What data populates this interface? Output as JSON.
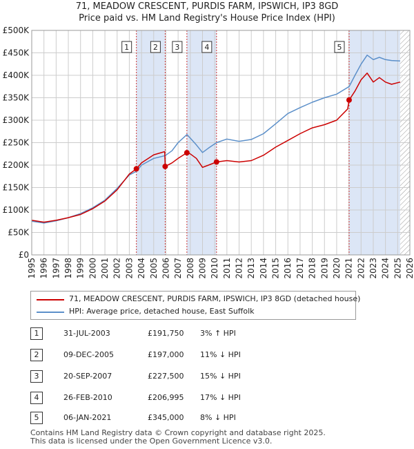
{
  "title_line1": "71, MEADOW CRESCENT, PURDIS FARM, IPSWICH, IP3 8GD",
  "title_line2": "Price paid vs. HM Land Registry's House Price Index (HPI)",
  "colors": {
    "price": "#cc0000",
    "hpi": "#5b8fc9",
    "shade": "#dce6f6",
    "grid": "#cccccc"
  },
  "legend": {
    "price": "71, MEADOW CRESCENT, PURDIS FARM, IPSWICH, IP3 8GD (detached house)",
    "hpi": "HPI: Average price, detached house, East Suffolk"
  },
  "transactions": [
    {
      "num": "1",
      "date": "31-JUL-2003",
      "price": "£191,750",
      "hpi": "3% ↑ HPI"
    },
    {
      "num": "2",
      "date": "09-DEC-2005",
      "price": "£197,000",
      "hpi": "11% ↓ HPI"
    },
    {
      "num": "3",
      "date": "20-SEP-2007",
      "price": "£227,500",
      "hpi": "15% ↓ HPI"
    },
    {
      "num": "4",
      "date": "26-FEB-2010",
      "price": "£206,995",
      "hpi": "17% ↓ HPI"
    },
    {
      "num": "5",
      "date": "06-JAN-2021",
      "price": "£345,000",
      "hpi": "8% ↓ HPI"
    }
  ],
  "footer_line1": "Contains HM Land Registry data © Crown copyright and database right 2025.",
  "footer_line2": "This data is licensed under the Open Government Licence v3.0.",
  "chart_data": {
    "type": "line",
    "xlim": [
      1995,
      2026
    ],
    "ylim": [
      0,
      500000
    ],
    "y_ticks": [
      0,
      50000,
      100000,
      150000,
      200000,
      250000,
      300000,
      350000,
      400000,
      450000,
      500000
    ],
    "y_tick_labels": [
      "£0",
      "£50K",
      "£100K",
      "£150K",
      "£200K",
      "£250K",
      "£300K",
      "£350K",
      "£400K",
      "£450K",
      "£500K"
    ],
    "x_ticks": [
      "1995",
      "1996",
      "1997",
      "1998",
      "1999",
      "2000",
      "2001",
      "2002",
      "2003",
      "2004",
      "2005",
      "2006",
      "2007",
      "2008",
      "2009",
      "2010",
      "2011",
      "2012",
      "2013",
      "2014",
      "2015",
      "2016",
      "2017",
      "2018",
      "2019",
      "2020",
      "2021",
      "2022",
      "2023",
      "2024",
      "2025",
      "2026"
    ],
    "grid": true,
    "shaded_periods": [
      [
        2003.58,
        2005.94
      ],
      [
        2007.72,
        2010.15
      ],
      [
        2021.02,
        2025.2
      ]
    ],
    "hatched_after": 2025.2,
    "sales": [
      {
        "label": "1",
        "x": 2003.58,
        "y": 191750
      },
      {
        "label": "2",
        "x": 2005.94,
        "y": 197000
      },
      {
        "label": "3",
        "x": 2007.72,
        "y": 227500
      },
      {
        "label": "4",
        "x": 2010.15,
        "y": 206995
      },
      {
        "label": "5",
        "x": 2021.02,
        "y": 345000
      }
    ],
    "series": [
      {
        "name": "71, MEADOW CRESCENT, PURDIS FARM, IPSWICH, IP3 8GD (detached house)",
        "color": "#cc0000",
        "x": [
          1995,
          1996,
          1997,
          1998,
          1999,
          2000,
          2001,
          2002,
          2003,
          2003.58,
          2004,
          2005,
          2005.9,
          2005.94,
          2006.5,
          2007,
          2007.72,
          2008,
          2008.5,
          2009,
          2009.5,
          2010.15,
          2011,
          2012,
          2013,
          2014,
          2015,
          2016,
          2017,
          2018,
          2019,
          2020,
          2020.9,
          2021.02,
          2021.5,
          2022,
          2022.5,
          2023,
          2023.5,
          2024,
          2024.5,
          2025.2
        ],
        "values": [
          77000,
          73000,
          77000,
          83000,
          90000,
          103000,
          120000,
          145000,
          180000,
          191750,
          205000,
          223000,
          230000,
          197000,
          205000,
          215000,
          227500,
          225000,
          215000,
          195000,
          200000,
          206995,
          210000,
          207000,
          210000,
          222000,
          240000,
          255000,
          270000,
          283000,
          290000,
          300000,
          325000,
          345000,
          365000,
          390000,
          405000,
          385000,
          395000,
          385000,
          380000,
          385000
        ]
      },
      {
        "name": "HPI: Average price, detached house, East Suffolk",
        "color": "#5b8fc9",
        "x": [
          1995,
          1996,
          1997,
          1998,
          1999,
          2000,
          2001,
          2002,
          2003,
          2003.58,
          2004,
          2005,
          2005.94,
          2006.5,
          2007,
          2007.72,
          2008,
          2008.5,
          2009,
          2009.5,
          2010.15,
          2011,
          2012,
          2013,
          2014,
          2015,
          2016,
          2017,
          2018,
          2019,
          2020,
          2021.02,
          2021.5,
          2022,
          2022.5,
          2023,
          2023.5,
          2024,
          2024.5,
          2025.2
        ],
        "values": [
          75000,
          71000,
          76000,
          83000,
          92000,
          105000,
          122000,
          148000,
          178000,
          186000,
          200000,
          215000,
          221000,
          232000,
          250000,
          268000,
          260000,
          245000,
          228000,
          238000,
          250000,
          258000,
          253000,
          257000,
          270000,
          292000,
          315000,
          328000,
          340000,
          350000,
          358000,
          375000,
          400000,
          425000,
          445000,
          435000,
          440000,
          435000,
          433000,
          432000
        ]
      }
    ]
  }
}
